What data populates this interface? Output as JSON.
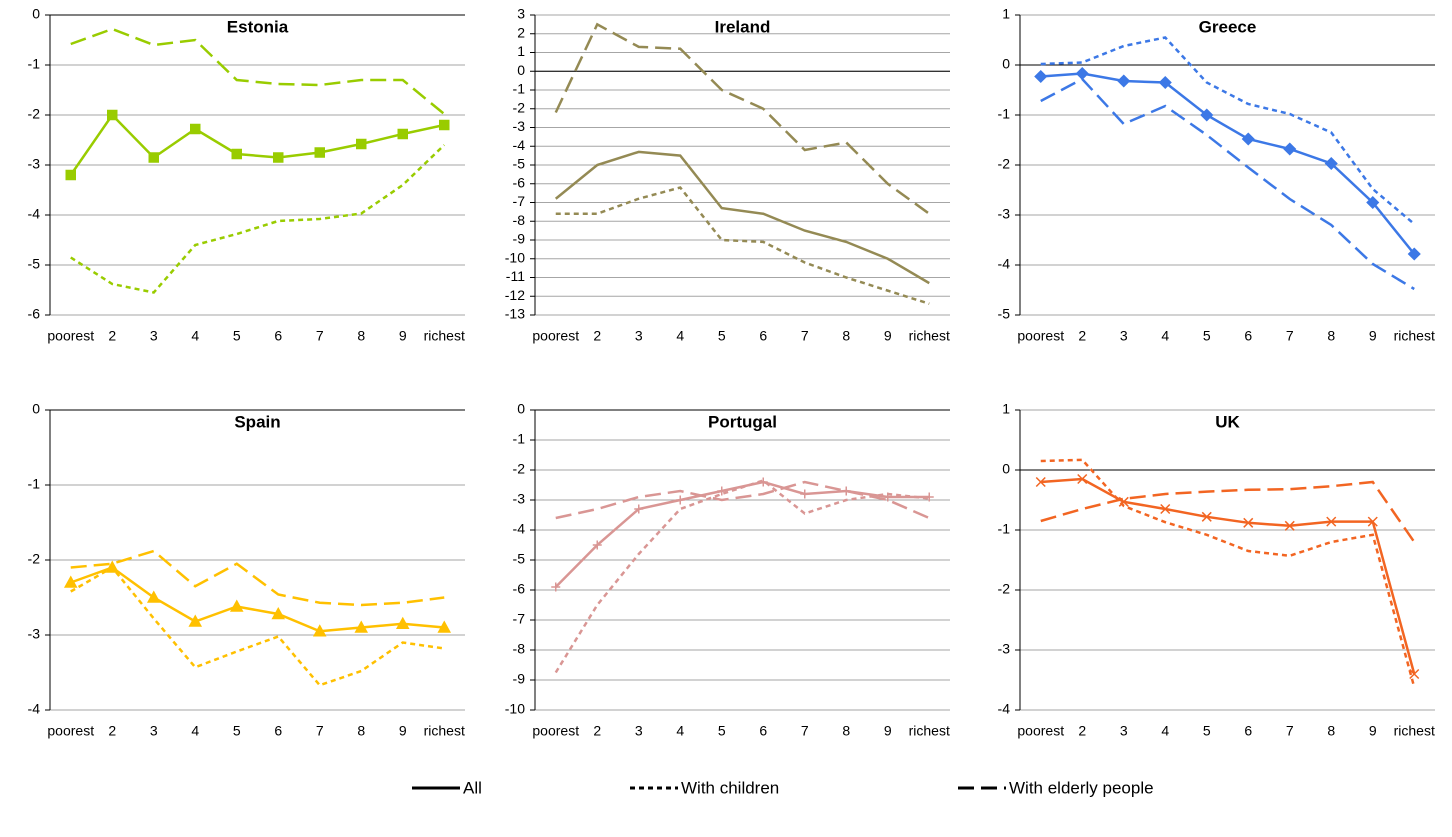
{
  "chart_data": [
    {
      "type": "line",
      "title": "Estonia",
      "marker": "square",
      "grid": true,
      "categories": [
        "poorest",
        "2",
        "3",
        "4",
        "5",
        "6",
        "7",
        "8",
        "9",
        "richest"
      ],
      "ylim": [
        -6,
        0
      ],
      "yticks": [
        0,
        -1,
        -2,
        -3,
        -4,
        -5,
        -6
      ],
      "series": [
        {
          "name": "All",
          "color": "#99cc00",
          "line_style": "solid",
          "values": [
            -3.2,
            -2.0,
            -2.85,
            -2.28,
            -2.78,
            -2.85,
            -2.75,
            -2.58,
            -2.38,
            -2.2
          ]
        },
        {
          "name": "With children",
          "color": "#99cc00",
          "line_style": "short-dash",
          "values": [
            -4.85,
            -5.38,
            -5.55,
            -4.6,
            -4.38,
            -4.12,
            -4.08,
            -3.97,
            -3.4,
            -2.6
          ]
        },
        {
          "name": "With elderly people",
          "color": "#99cc00",
          "line_style": "long-dash",
          "values": [
            -0.58,
            -0.28,
            -0.6,
            -0.5,
            -1.3,
            -1.38,
            -1.4,
            -1.3,
            -1.3,
            -1.98
          ]
        }
      ]
    },
    {
      "type": "line",
      "title": "Ireland",
      "marker": "none",
      "grid": true,
      "categories": [
        "poorest",
        "2",
        "3",
        "4",
        "5",
        "6",
        "7",
        "8",
        "9",
        "richest"
      ],
      "ylim": [
        -13,
        3
      ],
      "yticks": [
        3,
        2,
        1,
        0,
        -1,
        -2,
        -3,
        -4,
        -5,
        -6,
        -7,
        -8,
        -9,
        -10,
        -11,
        -12,
        -13
      ],
      "series": [
        {
          "name": "All",
          "color": "#948a54",
          "line_style": "solid",
          "values": [
            -6.8,
            -5.0,
            -4.3,
            -4.5,
            -7.3,
            -7.6,
            -8.5,
            -9.1,
            -10.0,
            -11.3
          ]
        },
        {
          "name": "With children",
          "color": "#948a54",
          "line_style": "short-dash",
          "values": [
            -7.6,
            -7.6,
            -6.8,
            -6.2,
            -9.0,
            -9.1,
            -10.2,
            -11.0,
            -11.7,
            -12.4
          ]
        },
        {
          "name": "With elderly people",
          "color": "#948a54",
          "line_style": "long-dash",
          "values": [
            -2.2,
            2.5,
            1.3,
            1.2,
            -1.0,
            -2.0,
            -4.2,
            -3.8,
            -6.0,
            -7.6
          ]
        }
      ]
    },
    {
      "type": "line",
      "title": "Greece",
      "marker": "diamond",
      "grid": true,
      "categories": [
        "poorest",
        "2",
        "3",
        "4",
        "5",
        "6",
        "7",
        "8",
        "9",
        "richest"
      ],
      "ylim": [
        -5,
        1
      ],
      "yticks": [
        1,
        0,
        -1,
        -2,
        -3,
        -4,
        -5
      ],
      "series": [
        {
          "name": "All",
          "color": "#3c78e6",
          "line_style": "solid",
          "values": [
            -0.23,
            -0.17,
            -0.32,
            -0.35,
            -1.0,
            -1.48,
            -1.68,
            -1.97,
            -2.75,
            -3.78
          ]
        },
        {
          "name": "With children",
          "color": "#3c78e6",
          "line_style": "short-dash",
          "values": [
            0.02,
            0.05,
            0.38,
            0.55,
            -0.35,
            -0.78,
            -0.98,
            -1.35,
            -2.48,
            -3.18
          ]
        },
        {
          "name": "With elderly people",
          "color": "#3c78e6",
          "line_style": "long-dash",
          "values": [
            -0.72,
            -0.28,
            -1.18,
            -0.82,
            -1.4,
            -2.05,
            -2.68,
            -3.2,
            -3.98,
            -4.48
          ]
        }
      ]
    },
    {
      "type": "line",
      "title": "Spain",
      "marker": "triangle",
      "grid": true,
      "categories": [
        "poorest",
        "2",
        "3",
        "4",
        "5",
        "6",
        "7",
        "8",
        "9",
        "richest"
      ],
      "ylim": [
        -4,
        0
      ],
      "yticks": [
        0,
        -1,
        -2,
        -3,
        -4
      ],
      "series": [
        {
          "name": "All",
          "color": "#ffc000",
          "line_style": "solid",
          "values": [
            -2.3,
            -2.1,
            -2.5,
            -2.82,
            -2.62,
            -2.72,
            -2.95,
            -2.9,
            -2.85,
            -2.9
          ]
        },
        {
          "name": "With children",
          "color": "#ffc000",
          "line_style": "short-dash",
          "values": [
            -2.42,
            -2.1,
            -2.78,
            -3.43,
            -3.22,
            -3.02,
            -3.67,
            -3.48,
            -3.1,
            -3.18
          ]
        },
        {
          "name": "With elderly people",
          "color": "#ffc000",
          "line_style": "long-dash",
          "values": [
            -2.1,
            -2.05,
            -1.88,
            -2.35,
            -2.05,
            -2.46,
            -2.57,
            -2.6,
            -2.57,
            -2.5
          ]
        }
      ]
    },
    {
      "type": "line",
      "title": "Portugal",
      "marker": "plus",
      "grid": true,
      "categories": [
        "poorest",
        "2",
        "3",
        "4",
        "5",
        "6",
        "7",
        "8",
        "9",
        "richest"
      ],
      "ylim": [
        -10,
        0
      ],
      "yticks": [
        0,
        -1,
        -2,
        -3,
        -4,
        -5,
        -6,
        -7,
        -8,
        -9,
        -10
      ],
      "series": [
        {
          "name": "All",
          "color": "#d99694",
          "line_style": "solid",
          "values": [
            -5.9,
            -4.5,
            -3.3,
            -3.0,
            -2.7,
            -2.4,
            -2.8,
            -2.7,
            -2.9,
            -2.9
          ]
        },
        {
          "name": "With children",
          "color": "#d99694",
          "line_style": "short-dash",
          "values": [
            -8.75,
            -6.5,
            -4.8,
            -3.3,
            -2.8,
            -2.35,
            -3.45,
            -3.0,
            -2.8,
            -2.95
          ]
        },
        {
          "name": "With elderly people",
          "color": "#d99694",
          "line_style": "long-dash",
          "values": [
            -3.6,
            -3.3,
            -2.9,
            -2.7,
            -3.0,
            -2.8,
            -2.4,
            -2.7,
            -3.0,
            -3.6
          ]
        }
      ]
    },
    {
      "type": "line",
      "title": "UK",
      "marker": "x",
      "grid": true,
      "categories": [
        "poorest",
        "2",
        "3",
        "4",
        "5",
        "6",
        "7",
        "8",
        "9",
        "richest"
      ],
      "ylim": [
        -4,
        1
      ],
      "yticks": [
        1,
        0,
        -1,
        -2,
        -3,
        -4
      ],
      "series": [
        {
          "name": "All",
          "color": "#f26522",
          "line_style": "solid",
          "values": [
            -0.2,
            -0.15,
            -0.53,
            -0.65,
            -0.78,
            -0.88,
            -0.93,
            -0.86,
            -0.86,
            -3.4
          ]
        },
        {
          "name": "With children",
          "color": "#f26522",
          "line_style": "short-dash",
          "values": [
            0.15,
            0.17,
            -0.6,
            -0.87,
            -1.08,
            -1.35,
            -1.43,
            -1.2,
            -1.08,
            -3.62
          ]
        },
        {
          "name": "With elderly people",
          "color": "#f26522",
          "line_style": "long-dash",
          "values": [
            -0.85,
            -0.65,
            -0.48,
            -0.4,
            -0.36,
            -0.33,
            -0.32,
            -0.27,
            -0.2,
            -1.2
          ]
        }
      ]
    }
  ]
}
